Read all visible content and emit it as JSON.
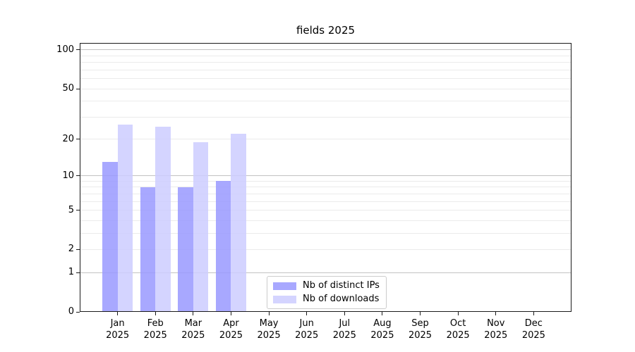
{
  "title": "fields 2025",
  "chart_data": {
    "type": "bar",
    "title": "fields 2025",
    "categories": [
      "Jan",
      "Feb",
      "Mar",
      "Apr",
      "May",
      "Jun",
      "Jul",
      "Aug",
      "Sep",
      "Oct",
      "Nov",
      "Dec"
    ],
    "x_tick_second_line": "2025",
    "series": [
      {
        "name": "Nb of distinct IPs",
        "color": "#9999ff",
        "values": [
          13,
          8,
          8,
          9,
          0,
          0,
          0,
          0,
          0,
          0,
          0,
          0
        ]
      },
      {
        "name": "Nb of downloads",
        "color": "#ccccff",
        "values": [
          26,
          25,
          19,
          22,
          0,
          0,
          0,
          0,
          0,
          0,
          0,
          0
        ]
      }
    ],
    "bar_alpha": 0.85,
    "y_scale": "log10(1+x)",
    "y_tick_labels": [
      "100",
      "50",
      "20",
      "10",
      "5",
      "2",
      "1",
      "0"
    ],
    "y_tick_values": [
      100,
      50,
      20,
      10,
      5,
      2,
      1,
      0
    ],
    "ylim": [
      0,
      113
    ],
    "grid": {
      "major_values": [
        1,
        10,
        100
      ],
      "minor_values": [
        2,
        3,
        4,
        5,
        6,
        7,
        8,
        9,
        20,
        30,
        40,
        50,
        60,
        70,
        80,
        90
      ]
    },
    "legend_position": "lower center",
    "xlabel": "",
    "ylabel": ""
  },
  "colors": {
    "axes_border": "#1a1a1a",
    "grid_major": "#c2c2c2",
    "grid_minor": "#ebebeb",
    "background": "#ffffff"
  }
}
